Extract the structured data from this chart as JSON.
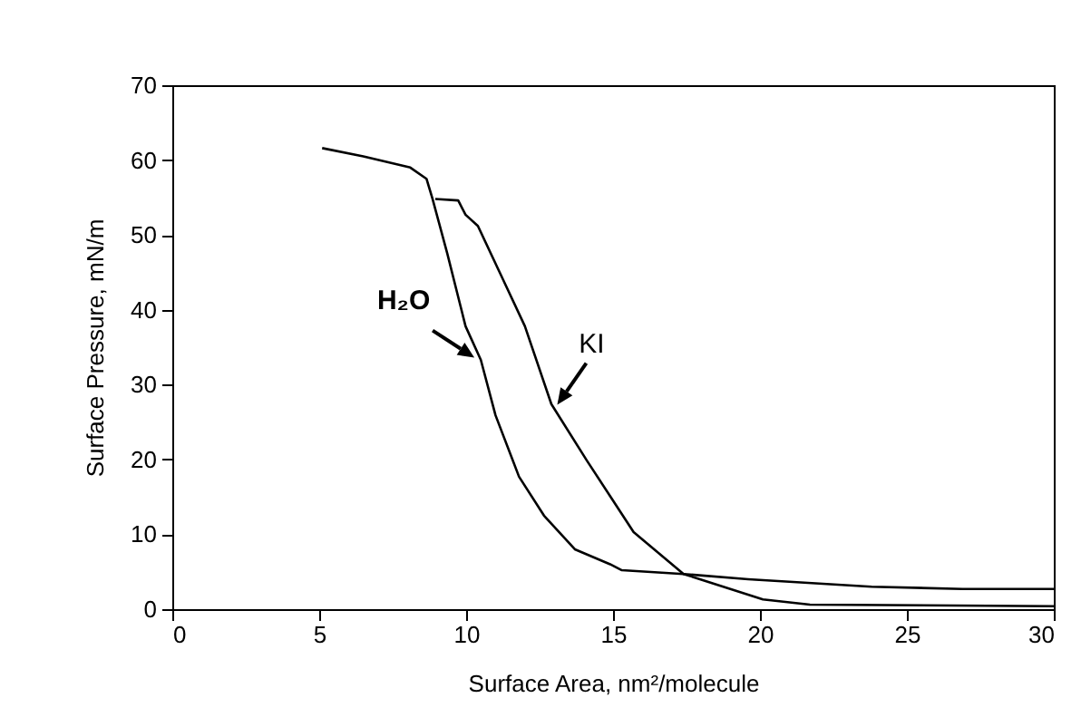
{
  "chart_data": {
    "type": "line",
    "xlabel": "Surface Area, nm²/molecule",
    "ylabel": "Surface Pressure, mN/m",
    "xlim": [
      0,
      30
    ],
    "xticks": [
      0,
      5,
      10,
      15,
      20,
      25,
      30
    ],
    "ylim": [
      0,
      70
    ],
    "yticks": [
      0,
      10,
      20,
      30,
      40,
      50,
      60,
      70
    ],
    "grid": false,
    "marker": "none",
    "line_style": "solid",
    "series": [
      {
        "name": "H₂O",
        "color": "#000000",
        "x": [
          5.1,
          6.5,
          8.1,
          8.65,
          8.85,
          9.36,
          9.98,
          10.5,
          11.0,
          11.8,
          12.65,
          13.7,
          14.9,
          15.3,
          17.4,
          19.6,
          23.8,
          26.9,
          30
        ],
        "values": [
          61.6,
          60.5,
          59,
          57.5,
          54.9,
          47.5,
          37.8,
          33.3,
          25.9,
          17.7,
          12.5,
          8.0,
          6.0,
          5.2,
          4.7,
          4.0,
          3.0,
          2.7,
          2.7
        ]
      },
      {
        "name": "KI",
        "color": "#000000",
        "x": [
          8.95,
          9.73,
          9.98,
          10.4,
          11.2,
          12.0,
          12.9,
          14.1,
          15.0,
          15.7,
          17.4,
          20.1,
          21.7,
          30
        ],
        "values": [
          54.8,
          54.6,
          52.7,
          51.2,
          44.5,
          37.8,
          27.4,
          19.9,
          14.5,
          10.3,
          4.7,
          1.3,
          0.6,
          0.4
        ]
      }
    ]
  }
}
